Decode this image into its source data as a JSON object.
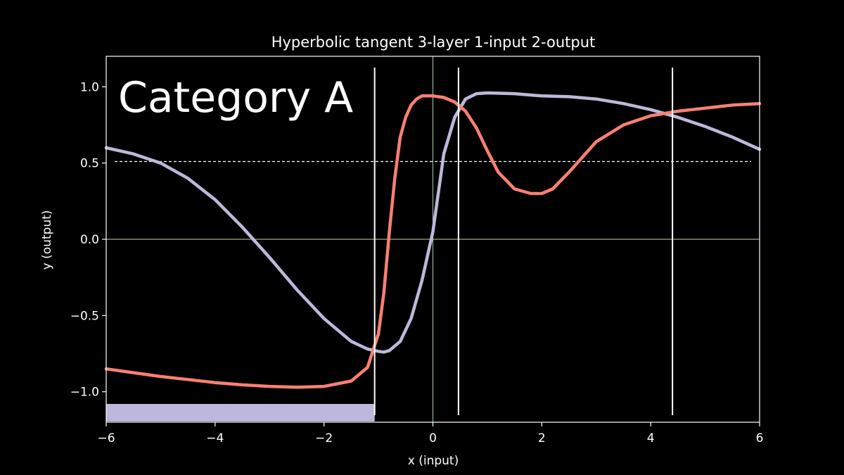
{
  "chart_data": {
    "type": "line",
    "title": "Hyperbolic tangent 3-layer 1-input 2-output",
    "xlabel": "x (input)",
    "ylabel": "y (output)",
    "xlim": [
      -6,
      6
    ],
    "ylim": [
      -1.2,
      1.2
    ],
    "x_ticks": [
      -6,
      -4,
      -2,
      0,
      2,
      4,
      6
    ],
    "x_tick_labels": [
      "−6",
      "−4",
      "−2",
      "0",
      "2",
      "4",
      "6"
    ],
    "y_ticks": [
      -1.0,
      -0.5,
      0.0,
      0.5,
      1.0
    ],
    "y_tick_labels": [
      "−1.0",
      "−0.5",
      "0.0",
      "0.5",
      "1.0"
    ],
    "annotation": "Category A",
    "threshold": 0.51,
    "boundaries": [
      -1.07,
      0.47,
      4.4
    ],
    "category_band": {
      "x_start": -6,
      "x_end": -1.07,
      "color": "#bdb8db"
    },
    "series": [
      {
        "color": "#bdb8db",
        "x": [
          -6,
          -5.5,
          -5,
          -4.5,
          -4,
          -3.5,
          -3,
          -2.5,
          -2,
          -1.5,
          -1.2,
          -1.0,
          -0.9,
          -0.8,
          -0.6,
          -0.4,
          -0.2,
          0.0,
          0.2,
          0.4,
          0.6,
          0.8,
          1.0,
          1.5,
          2.0,
          2.5,
          3.0,
          3.5,
          4.0,
          4.5,
          5.0,
          5.5,
          6.0
        ],
        "y": [
          0.6,
          0.56,
          0.5,
          0.4,
          0.26,
          0.08,
          -0.12,
          -0.33,
          -0.52,
          -0.67,
          -0.72,
          -0.735,
          -0.74,
          -0.73,
          -0.67,
          -0.52,
          -0.27,
          0.05,
          0.56,
          0.8,
          0.92,
          0.955,
          0.96,
          0.955,
          0.94,
          0.935,
          0.92,
          0.89,
          0.85,
          0.8,
          0.74,
          0.67,
          0.59
        ]
      },
      {
        "color": "#fa8072",
        "x": [
          -6,
          -5.5,
          -5,
          -4.5,
          -4,
          -3.5,
          -3,
          -2.5,
          -2,
          -1.5,
          -1.2,
          -1.0,
          -0.9,
          -0.8,
          -0.7,
          -0.6,
          -0.5,
          -0.4,
          -0.3,
          -0.2,
          0.0,
          0.2,
          0.4,
          0.6,
          0.8,
          1.0,
          1.2,
          1.5,
          1.8,
          2.0,
          2.2,
          2.5,
          3.0,
          3.5,
          4.0,
          4.5,
          5.0,
          5.5,
          6.0
        ],
        "y": [
          -0.85,
          -0.875,
          -0.9,
          -0.92,
          -0.94,
          -0.955,
          -0.965,
          -0.97,
          -0.965,
          -0.93,
          -0.84,
          -0.62,
          -0.35,
          0.05,
          0.4,
          0.67,
          0.8,
          0.88,
          0.92,
          0.94,
          0.94,
          0.93,
          0.9,
          0.84,
          0.73,
          0.58,
          0.44,
          0.33,
          0.3,
          0.3,
          0.33,
          0.44,
          0.64,
          0.75,
          0.81,
          0.84,
          0.86,
          0.88,
          0.89
        ]
      }
    ]
  }
}
